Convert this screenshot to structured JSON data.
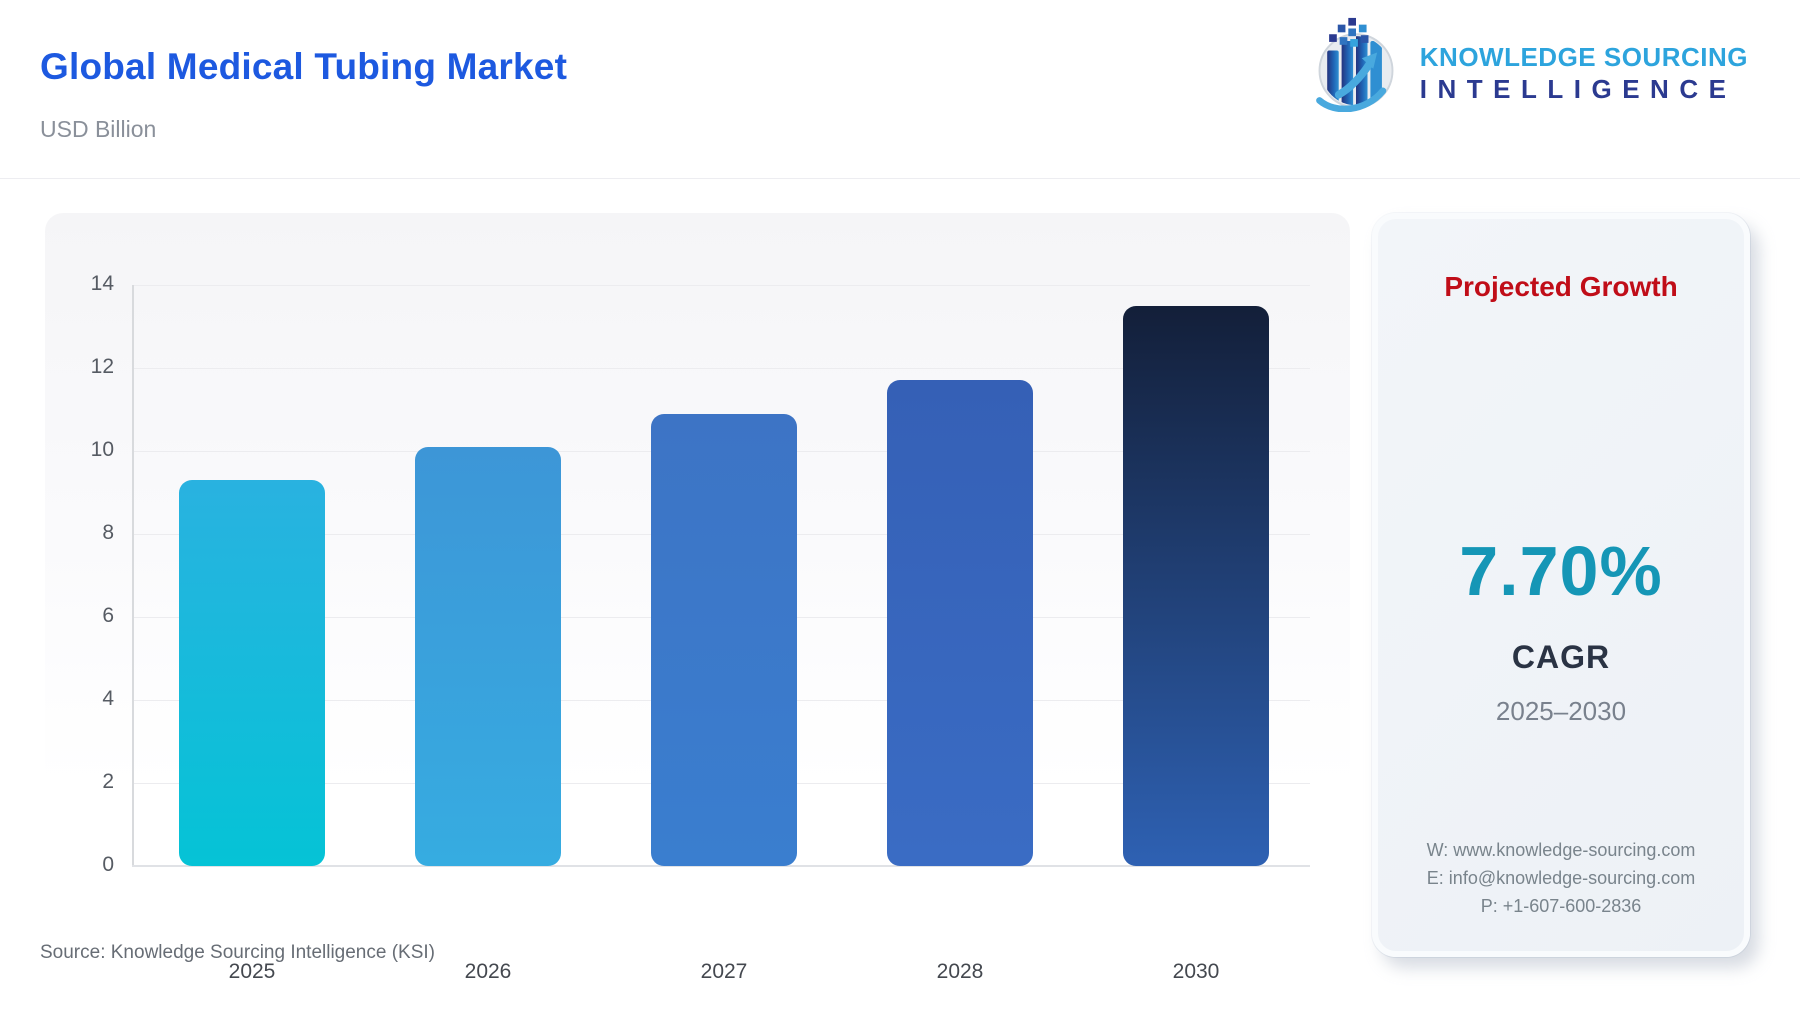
{
  "header": {
    "title": "Global Medical Tubing Market",
    "subtitle": "USD Billion",
    "logo": {
      "line1": "KNOWLEDGE SOURCING",
      "line2": "INTELLIGENCE",
      "line1_color": "#2da4dd",
      "line2_color": "#2b3a90"
    }
  },
  "chart_data": {
    "type": "bar",
    "title": "Global Medical Tubing Market",
    "ylabel": "USD Billion",
    "xlabel": "",
    "categories": [
      "2025",
      "2026",
      "2027",
      "2028",
      "2030"
    ],
    "values": [
      9.3,
      10.1,
      10.9,
      11.7,
      13.5
    ],
    "ylim": [
      0,
      14
    ],
    "yticks": [
      0,
      2,
      4,
      6,
      8,
      10,
      12,
      14
    ],
    "grid": true,
    "legend": "none",
    "bar_colors": [
      {
        "top": "#29b2e0",
        "bottom": "#05c3d6"
      },
      {
        "top": "#3d96d7",
        "bottom": "#36ace1"
      },
      {
        "top": "#3d74c5",
        "bottom": "#3a7ecf"
      },
      {
        "top": "#3560b6",
        "bottom": "#3a6cc4"
      },
      {
        "top": "#131f39",
        "bottom": "#2e61b3"
      }
    ]
  },
  "side_panel": {
    "heading": "Projected Growth",
    "heading_color": "#c00d18",
    "cagr_value": "7.70%",
    "cagr_value_color": "#1596b6",
    "cagr_label": "CAGR",
    "period": "2025–2030",
    "contact": {
      "website": "W: www.knowledge-sourcing.com",
      "email": "E: info@knowledge-sourcing.com",
      "phone": "P: +1-607-600-2836"
    }
  },
  "footer": {
    "source": "Source: Knowledge Sourcing Intelligence (KSI)"
  },
  "colors": {
    "title": "#1d59e0",
    "subtitle": "#8a909a",
    "gridline": "#ececef",
    "axis": "#d8dadd",
    "tick_label": "#565b63",
    "x_label": "#44484f",
    "panel_bg_top": "#f5f5f7",
    "card_bg": "#edf1f6"
  }
}
